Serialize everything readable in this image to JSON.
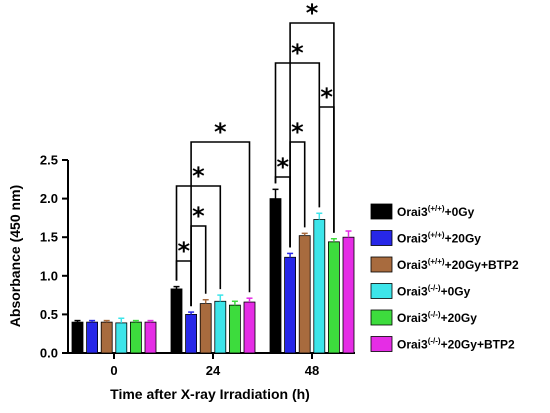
{
  "chart_data": {
    "type": "bar",
    "xlabel": "Time after X-ray Irradiation (h)",
    "ylabel": "Absorbance (450 nm)",
    "ylim": [
      0,
      2.5
    ],
    "yticks": [
      "0.0",
      "0.5",
      "1.0",
      "1.5",
      "2.0",
      "2.5"
    ],
    "categories": [
      "0",
      "24",
      "48"
    ],
    "legend_position": "right",
    "grid": false,
    "series": [
      {
        "name": "Orai3(+/+)+0Gy",
        "label_base": "Orai3",
        "label_sup": "(+/+)",
        "label_rest": "+0Gy",
        "color": "#000000",
        "values": [
          0.4,
          0.83,
          2.0
        ],
        "errors": [
          0.02,
          0.03,
          0.12
        ]
      },
      {
        "name": "Orai3(+/+)+20Gy",
        "label_base": "Orai3",
        "label_sup": "(+/+)",
        "label_rest": "+20Gy",
        "color": "#2727e8",
        "values": [
          0.4,
          0.5,
          1.24
        ],
        "errors": [
          0.02,
          0.03,
          0.05
        ]
      },
      {
        "name": "Orai3(+/+)+20Gy+BTP2",
        "label_base": "Orai3",
        "label_sup": "(+/+)",
        "label_rest": "+20Gy+BTP2",
        "color": "#a86b3e",
        "values": [
          0.4,
          0.64,
          1.52
        ],
        "errors": [
          0.02,
          0.05,
          0.03
        ]
      },
      {
        "name": "Orai3(-/-)+0Gy",
        "label_base": "Orai3",
        "label_sup": "(-/-)",
        "label_rest": "+0Gy",
        "color": "#3de5ea",
        "values": [
          0.39,
          0.67,
          1.73
        ],
        "errors": [
          0.06,
          0.08,
          0.08
        ]
      },
      {
        "name": "Orai3(-/-)+20Gy",
        "label_base": "Orai3",
        "label_sup": "(-/-)",
        "label_rest": "+20Gy",
        "color": "#3ddc3d",
        "values": [
          0.4,
          0.62,
          1.44
        ],
        "errors": [
          0.02,
          0.05,
          0.04
        ]
      },
      {
        "name": "Orai3(-/-)+20Gy+BTP2",
        "label_base": "Orai3",
        "label_sup": "(-/-)",
        "label_rest": "+20Gy+BTP2",
        "color": "#e52de5",
        "values": [
          0.4,
          0.66,
          1.5
        ],
        "errors": [
          0.02,
          0.05,
          0.08
        ]
      }
    ],
    "annotations": [
      {
        "text": "*",
        "category": 1,
        "from_series": 0,
        "to_series": 1,
        "level": 1
      },
      {
        "text": "*",
        "category": 1,
        "from_series": 1,
        "to_series": 2,
        "level": 2
      },
      {
        "text": "*",
        "category": 1,
        "from_series": 0,
        "to_series": 3,
        "level": 3
      },
      {
        "text": "*",
        "category": 1,
        "from_series": 1,
        "to_series": 5,
        "level": 4
      },
      {
        "text": "*",
        "category": 2,
        "from_series": 0,
        "to_series": 1,
        "level": 1
      },
      {
        "text": "*",
        "category": 2,
        "from_series": 1,
        "to_series": 2,
        "level": 2
      },
      {
        "text": "*",
        "category": 2,
        "from_series": 3,
        "to_series": 4,
        "level": 2
      },
      {
        "text": "*",
        "category": 2,
        "from_series": 0,
        "to_series": 3,
        "level": 3
      },
      {
        "text": "*",
        "category": 2,
        "from_series": 1,
        "to_series": 4,
        "level": 4
      }
    ]
  }
}
